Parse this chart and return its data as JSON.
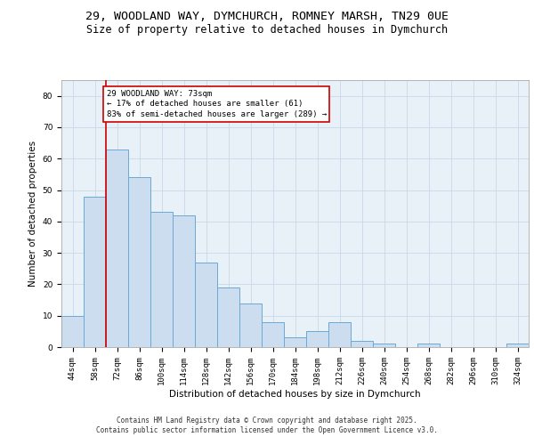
{
  "title_line1": "29, WOODLAND WAY, DYMCHURCH, ROMNEY MARSH, TN29 0UE",
  "title_line2": "Size of property relative to detached houses in Dymchurch",
  "xlabel": "Distribution of detached houses by size in Dymchurch",
  "ylabel": "Number of detached properties",
  "categories": [
    "44sqm",
    "58sqm",
    "72sqm",
    "86sqm",
    "100sqm",
    "114sqm",
    "128sqm",
    "142sqm",
    "156sqm",
    "170sqm",
    "184sqm",
    "198sqm",
    "212sqm",
    "226sqm",
    "240sqm",
    "254sqm",
    "268sqm",
    "282sqm",
    "296sqm",
    "310sqm",
    "324sqm"
  ],
  "bar_values": [
    10,
    48,
    63,
    54,
    43,
    42,
    27,
    19,
    14,
    8,
    3,
    5,
    8,
    2,
    1,
    0,
    1,
    0,
    0,
    0,
    1
  ],
  "bar_color": "#ccddf0",
  "bar_edge_color": "#6aaad4",
  "grid_color": "#c8d8e8",
  "bg_color": "#e8f0f8",
  "annotation_text": "29 WOODLAND WAY: 73sqm\n← 17% of detached houses are smaller (61)\n83% of semi-detached houses are larger (289) →",
  "annotation_box_color": "#ffffff",
  "annotation_box_edge": "#cc0000",
  "vline_x": 1.5,
  "vline_color": "#cc0000",
  "ylim": [
    0,
    85
  ],
  "yticks": [
    0,
    10,
    20,
    30,
    40,
    50,
    60,
    70,
    80
  ],
  "footer_line1": "Contains HM Land Registry data © Crown copyright and database right 2025.",
  "footer_line2": "Contains public sector information licensed under the Open Government Licence v3.0.",
  "title_fontsize": 9.5,
  "subtitle_fontsize": 8.5,
  "label_fontsize": 7.5,
  "tick_fontsize": 6.5,
  "annotation_fontsize": 6.5,
  "footer_fontsize": 5.5
}
